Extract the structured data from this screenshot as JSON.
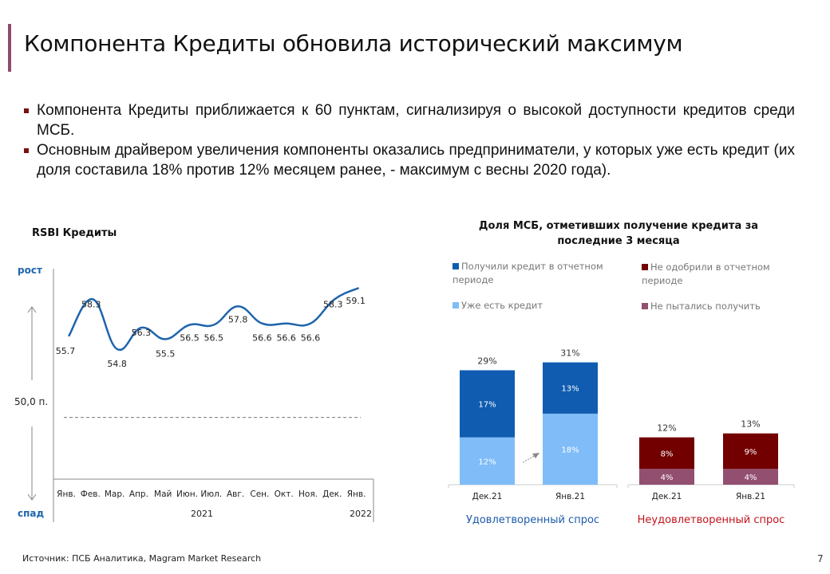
{
  "header": {
    "title": "Компонента Кредиты обновила исторический максимум"
  },
  "bullets": [
    "Компонента Кредиты приближается к 60 пунктам, сигнализируя о высокой доступности кредитов среди МСБ.",
    "Основным драйвером увеличения компоненты оказались предприниматели, у которых уже есть кредит (их доля составила 18% против 12% месяцем ранее, - максимум с весны 2020 года)."
  ],
  "colors": {
    "accent": "#8e4a6e",
    "line": "#1e64ad",
    "dark_blue": "#0f5cb0",
    "light_blue": "#7fbcf8",
    "dark_red": "#730000",
    "mauve": "#924f70",
    "satisfied": "#1e5aa8",
    "unsatisfied": "#c0141e"
  },
  "chart_data": [
    {
      "type": "line",
      "title": "RSBI Кредиты",
      "categories": [
        "Янв.",
        "Фев.",
        "Мар.",
        "Апр.",
        "Май",
        "Июн.",
        "Июл.",
        "Авг.",
        "Сен.",
        "Окт.",
        "Ноя.",
        "Дек.",
        "Янв."
      ],
      "years": [
        {
          "label": "2021"
        },
        {
          "label": "2022"
        }
      ],
      "values": [
        55.7,
        58.3,
        54.8,
        56.3,
        55.5,
        56.5,
        56.5,
        57.8,
        56.6,
        56.6,
        56.6,
        58.3,
        59.1
      ],
      "value_labels": [
        "55.7",
        "58.3",
        "54.8",
        "56.3",
        "55.5",
        "56.5",
        "56.5",
        "57.8",
        "56.6",
        "56.6",
        "56.6",
        "58.3",
        "59.1"
      ],
      "reference_line": {
        "value": 50.0,
        "label": "50,0 п."
      },
      "axis_up_label": "рост",
      "axis_down_label": "спад",
      "ylim": [
        46,
        60
      ]
    },
    {
      "type": "bar",
      "stacked": true,
      "title": "Доля МСБ, отметивших получение кредита за последние 3 месяца",
      "legend": [
        {
          "label": "Получили кредит в отчетном периоде",
          "color": "#0f5cb0"
        },
        {
          "label": "Уже есть кредит",
          "color": "#7fbcf8"
        },
        {
          "label": "Не одобрили в отчетном периоде",
          "color": "#730000"
        },
        {
          "label": "Не пытались получить",
          "color": "#924f70"
        }
      ],
      "groups": [
        {
          "label": "Удовлетворенный спрос",
          "categories": [
            "Дек.21",
            "Янв.21"
          ],
          "series": [
            {
              "name": "Уже есть кредит",
              "values": [
                12,
                18
              ],
              "labels": [
                "12%",
                "18%"
              ],
              "color": "#7fbcf8"
            },
            {
              "name": "Получили кредит в отчетном периоде",
              "values": [
                17,
                13
              ],
              "labels": [
                "17%",
                "13%"
              ],
              "color": "#0f5cb0"
            }
          ],
          "totals": [
            "29%",
            "31%"
          ],
          "total_values": [
            29,
            31
          ]
        },
        {
          "label": "Неудовлетворенный спрос",
          "categories": [
            "Дек.21",
            "Янв.21"
          ],
          "series": [
            {
              "name": "Не пытались получить",
              "values": [
                4,
                4
              ],
              "labels": [
                "4%",
                "4%"
              ],
              "color": "#924f70"
            },
            {
              "name": "Не одобрили в отчетном периоде",
              "values": [
                8,
                9
              ],
              "labels": [
                "8%",
                "9%"
              ],
              "color": "#730000"
            }
          ],
          "totals": [
            "12%",
            "13%"
          ],
          "total_values": [
            12,
            13
          ]
        }
      ]
    }
  ],
  "footer": {
    "source": "Источник: ПСБ Аналитика, Magram Market Research",
    "page": "7"
  }
}
